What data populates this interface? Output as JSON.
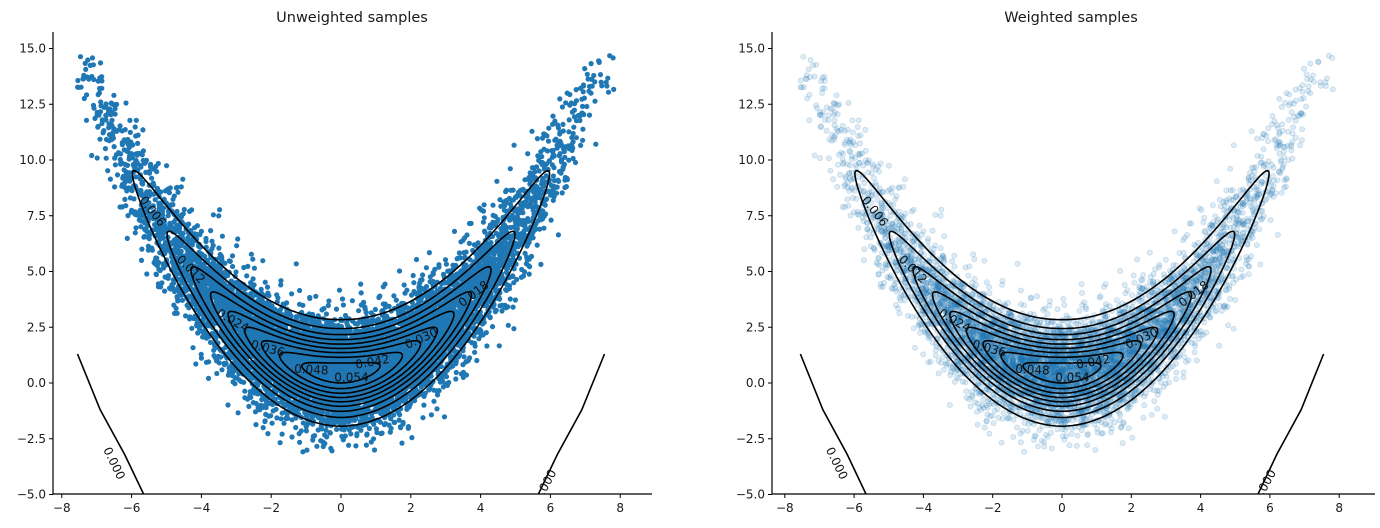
{
  "chart_data": [
    {
      "type": "scatter",
      "title": "Unweighted samples",
      "xlabel": "",
      "ylabel": "",
      "xlim": [
        -8.35,
        9.0
      ],
      "ylim": [
        -5.0,
        15.8
      ],
      "xticks": [
        -8,
        -6,
        -4,
        -2,
        0,
        2,
        4,
        6,
        8
      ],
      "yticks": [
        -5.0,
        -2.5,
        0.0,
        2.5,
        5.0,
        7.5,
        10.0,
        12.5,
        15.0
      ],
      "grid": false,
      "point_color": "#1f77b4",
      "point_alpha": 1.0,
      "point_radius": 2.6,
      "distribution": "banana: y = x^2/4 + v, x ~ N(0, 3.0), v ~ N(0.4, 1.2)",
      "sample_extent": {
        "x": [
          -7.6,
          8.3
        ],
        "y": [
          -3.2,
          14.7
        ]
      },
      "contour": {
        "color": "#000000",
        "levels": [
          0.0,
          0.006,
          0.012,
          0.018,
          0.024,
          0.03,
          0.036,
          0.042,
          0.048,
          0.054
        ],
        "labels": [
          "0.000",
          "0.006",
          "0.012",
          "0.018",
          "0.024",
          "0.030",
          "0.036",
          "0.042",
          "0.048",
          "0.054"
        ]
      }
    },
    {
      "type": "scatter",
      "title": "Weighted samples",
      "xlabel": "",
      "ylabel": "",
      "xlim": [
        -8.35,
        9.0
      ],
      "ylim": [
        -5.0,
        15.8
      ],
      "xticks": [
        -8,
        -6,
        -4,
        -2,
        0,
        2,
        4,
        6,
        8
      ],
      "yticks": [
        -5.0,
        -2.5,
        0.0,
        2.5,
        5.0,
        7.5,
        10.0,
        12.5,
        15.0
      ],
      "grid": false,
      "point_color": "#1f77b4",
      "point_alpha": 0.15,
      "point_radius": 2.6,
      "distribution": "banana: y = x^2/4 + v, x ~ N(0, 3.0), v ~ N(0.4, 1.2)",
      "sample_extent": {
        "x": [
          -7.6,
          8.3
        ],
        "y": [
          -3.2,
          14.7
        ]
      },
      "contour": {
        "color": "#000000",
        "levels": [
          0.0,
          0.006,
          0.012,
          0.018,
          0.024,
          0.03,
          0.036,
          0.042,
          0.048,
          0.054
        ],
        "labels": [
          "0.000",
          "0.006",
          "0.012",
          "0.018",
          "0.024",
          "0.030",
          "0.036",
          "0.042",
          "0.048",
          "0.054"
        ]
      }
    }
  ],
  "panels": [
    {
      "title": "Unweighted samples"
    },
    {
      "title": "Weighted samples"
    }
  ]
}
